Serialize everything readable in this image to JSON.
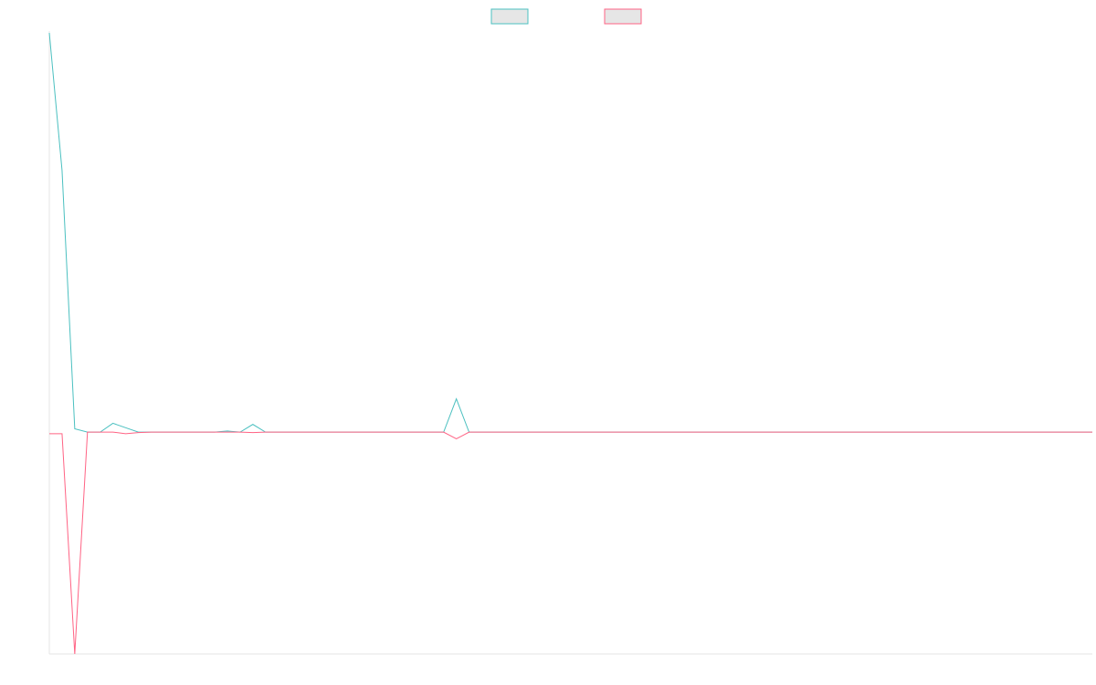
{
  "chart_data": {
    "type": "line",
    "title": "",
    "xlabel": "",
    "ylabel": "",
    "grid": false,
    "legend": "top-center",
    "ylim": [
      -100,
      180
    ],
    "series": [
      {
        "color": "#4bc0c0",
        "fill": "#e6e6e6",
        "values": [
          180,
          118,
          1.5,
          0,
          0,
          4,
          2,
          0,
          0,
          0,
          0,
          0,
          0,
          0,
          0.5,
          0,
          3.5,
          0,
          0,
          0,
          0,
          0,
          0,
          0,
          0,
          0,
          0,
          0,
          0,
          0,
          0,
          0,
          15,
          0,
          0,
          0,
          0,
          0,
          0,
          0,
          0,
          0,
          0,
          0,
          0,
          0,
          0,
          0,
          0,
          0,
          0,
          0,
          0,
          0,
          0,
          0,
          0,
          0,
          0,
          0,
          0,
          0,
          0,
          0,
          0,
          0,
          0,
          0,
          0,
          0,
          0,
          0,
          0,
          0,
          0,
          0,
          0,
          0,
          0,
          0,
          0,
          0,
          0
        ]
      },
      {
        "color": "#ff6384",
        "fill": "#e6e6e6",
        "values": [
          -0.7,
          -0.7,
          -100,
          0,
          0,
          0,
          -0.7,
          -0.2,
          0,
          0,
          0,
          0,
          0,
          0,
          0,
          0,
          -0.2,
          0,
          0,
          0,
          0,
          0,
          0,
          0,
          0,
          0,
          0,
          0,
          0,
          0,
          0,
          0,
          -3,
          0,
          0,
          0,
          0,
          0,
          0,
          0,
          0,
          0,
          0,
          0,
          0,
          0,
          0,
          0,
          0,
          0,
          0,
          0,
          0,
          0,
          0,
          0,
          0,
          0,
          0,
          0,
          0,
          0,
          0,
          0,
          0,
          0,
          0,
          0,
          0,
          0,
          0,
          0,
          0,
          0,
          0,
          0,
          0,
          0,
          0,
          0,
          0,
          0,
          0
        ]
      }
    ]
  }
}
